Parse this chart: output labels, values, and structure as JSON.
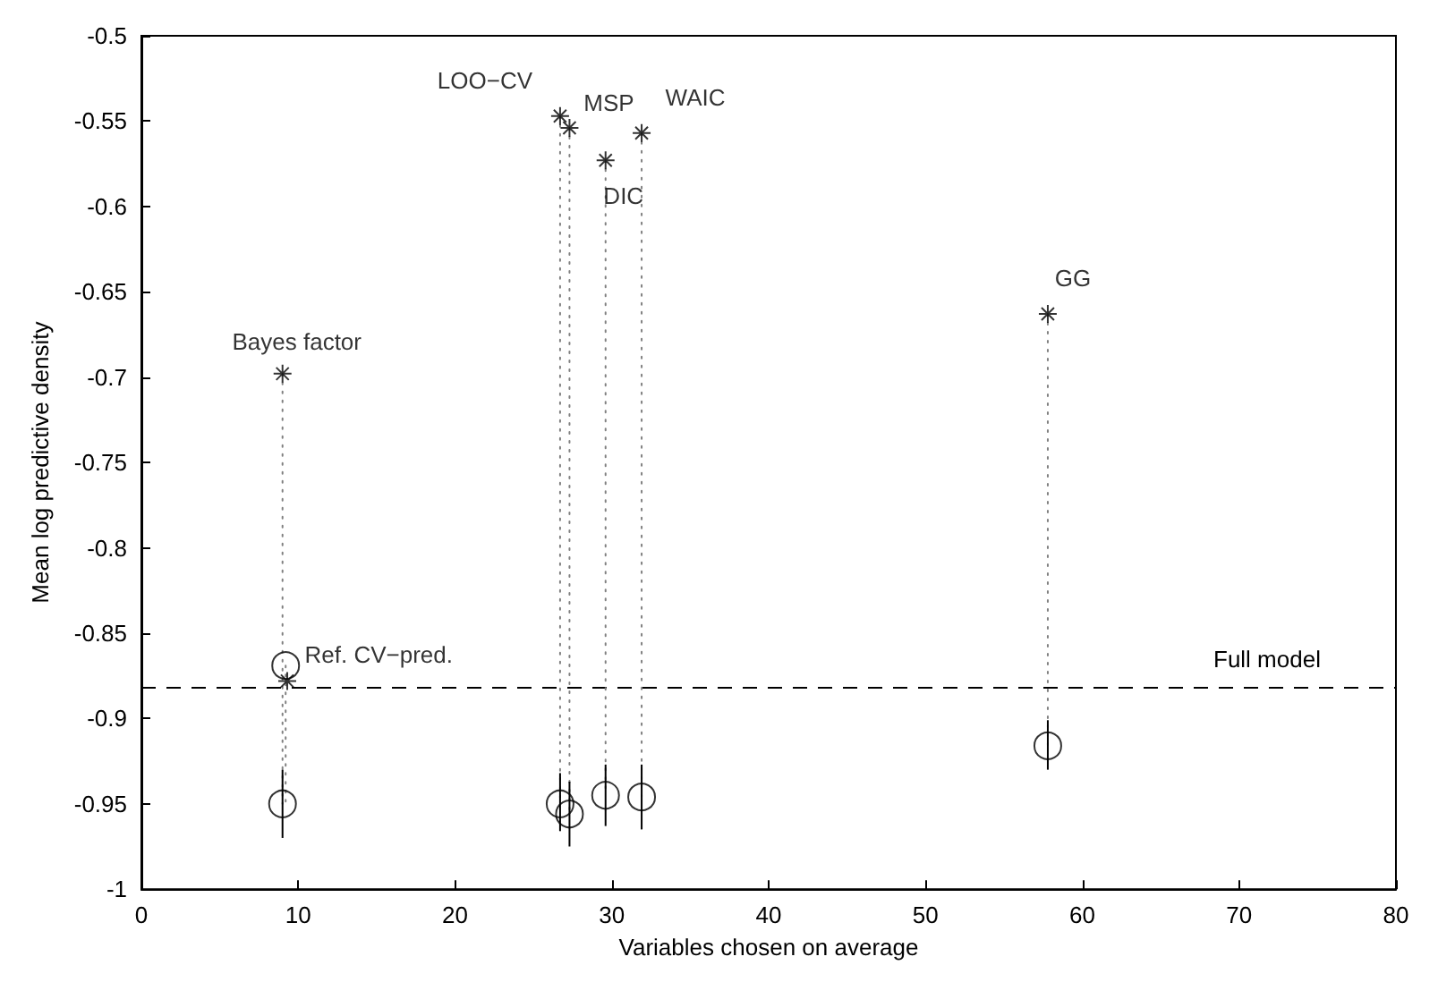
{
  "chart_data": {
    "type": "scatter",
    "xlabel": "Variables chosen on average",
    "ylabel": "Mean log predictive density",
    "xlim": [
      0,
      80
    ],
    "xticks": [
      0,
      10,
      20,
      30,
      40,
      50,
      60,
      70,
      80
    ],
    "ylim": [
      -1,
      -0.5
    ],
    "yticks": [
      -1,
      -0.95,
      -0.9,
      -0.85,
      -0.8,
      -0.75,
      -0.7,
      -0.65,
      -0.6,
      -0.55,
      -0.5
    ],
    "grid": false,
    "series": [
      {
        "type": "line",
        "line_style": "dotted",
        "marker": "none",
        "color": "#808080",
        "x": [
          9,
          9
        ],
        "values": [
          -0.698,
          -0.95
        ]
      },
      {
        "type": "line",
        "line_style": "dotted",
        "marker": "none",
        "color": "#808080",
        "x": [
          9.2,
          9.2
        ],
        "values": [
          -0.869,
          -0.95
        ]
      },
      {
        "type": "line",
        "line_style": "dotted",
        "marker": "none",
        "color": "#808080",
        "x": [
          26.7,
          26.7
        ],
        "values": [
          -0.547,
          -0.95
        ]
      },
      {
        "type": "line",
        "line_style": "dotted",
        "marker": "none",
        "color": "#808080",
        "x": [
          27.3,
          27.3
        ],
        "values": [
          -0.554,
          -0.956
        ]
      },
      {
        "type": "line",
        "line_style": "dotted",
        "marker": "none",
        "color": "#808080",
        "x": [
          29.6,
          29.6
        ],
        "values": [
          -0.573,
          -0.945
        ]
      },
      {
        "type": "line",
        "line_style": "dotted",
        "marker": "none",
        "color": "#808080",
        "x": [
          31.9,
          31.9
        ],
        "values": [
          -0.557,
          -0.946
        ]
      },
      {
        "type": "line",
        "line_style": "dotted",
        "marker": "none",
        "color": "#808080",
        "x": [
          57.8,
          57.8
        ],
        "values": [
          -0.663,
          -0.916
        ]
      },
      {
        "marker": "cross",
        "color": "#000000",
        "x": [
          9,
          9.3,
          26.7,
          27.3,
          29.6,
          31.9,
          57.8
        ],
        "values": [
          -0.698,
          -0.878,
          -0.547,
          -0.554,
          -0.573,
          -0.557,
          -0.663
        ]
      },
      {
        "marker": "circle",
        "color": "#000000",
        "x": [
          9,
          9.2,
          26.7,
          27.3,
          29.6,
          31.9,
          57.8
        ],
        "values": [
          -0.95,
          -0.869,
          -0.95,
          -0.956,
          -0.945,
          -0.946,
          -0.916
        ],
        "errors": [
          [
            -0.97,
            -0.93
          ],
          null,
          [
            -0.966,
            -0.932
          ],
          [
            -0.975,
            -0.937
          ],
          [
            -0.963,
            -0.927
          ],
          [
            -0.965,
            -0.927
          ],
          [
            -0.93,
            -0.901
          ]
        ]
      }
    ],
    "ref_lines": [
      {
        "axis": "y",
        "value": -0.882,
        "label": "Full model",
        "color": "#000000",
        "line_style": "dashed"
      }
    ],
    "annotations": [
      {
        "text": "Bayes factor",
        "x": 9,
        "y": -0.698
      },
      {
        "text": "LOO−CV",
        "x": 26.7,
        "y": -0.547
      },
      {
        "text": "MSP",
        "x": 27.3,
        "y": -0.554
      },
      {
        "text": "WAIC",
        "x": 31.9,
        "y": -0.557
      },
      {
        "text": "DIC",
        "x": 29.6,
        "y": -0.573
      },
      {
        "text": "GG",
        "x": 57.8,
        "y": -0.663
      },
      {
        "text": "Ref. CV−pred.",
        "x": 9.2,
        "y": -0.869
      }
    ]
  }
}
